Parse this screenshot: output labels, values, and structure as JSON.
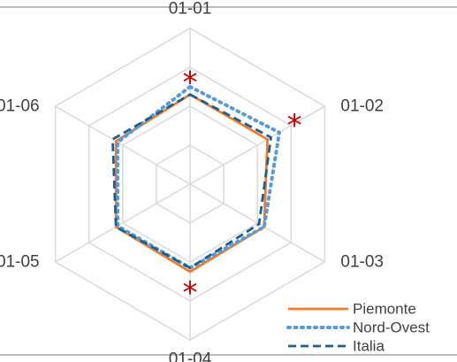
{
  "chart_data": {
    "type": "radar",
    "title": "",
    "categories": [
      "01-01",
      "01-02",
      "01-03",
      "01-04",
      "01-05",
      "01-06"
    ],
    "rmax": 8,
    "grid_rings": 4,
    "series": [
      {
        "name": "Piemonte",
        "values": [
          4.6,
          4.6,
          4.4,
          4.5,
          4.4,
          4.4
        ],
        "color": "#ed7d31",
        "style": "solid"
      },
      {
        "name": "Nord-Ovest",
        "values": [
          5.0,
          5.3,
          4.4,
          4.3,
          4.3,
          4.3
        ],
        "color": "#5b9bd5",
        "style": "dotted"
      },
      {
        "name": "Italia",
        "values": [
          4.6,
          4.8,
          4.1,
          4.3,
          4.4,
          4.6
        ],
        "color": "#1f5f8b",
        "style": "dashed"
      }
    ],
    "significance_markers": [
      {
        "category": "01-01",
        "value": 5.3,
        "symbol": "*"
      },
      {
        "category": "01-02",
        "value": 6.2,
        "symbol": "*"
      },
      {
        "category": "01-04",
        "value": 5.5,
        "symbol": "*"
      }
    ],
    "legend_position": "bottom-right",
    "grid": true
  }
}
